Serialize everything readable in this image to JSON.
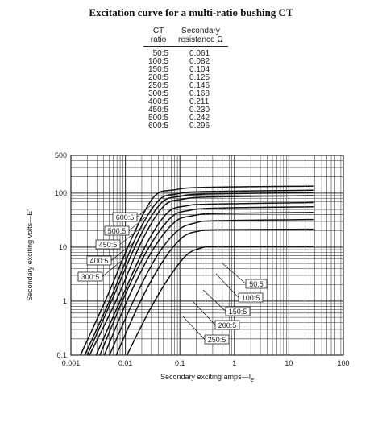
{
  "chart_data": {
    "type": "line",
    "title": "Excitation curve for a multi-ratio bushing CT",
    "xlabel": "Secondary exciting amps—I",
    "xlabel_sub": "e",
    "ylabel": "Secondary exciting volts—E'",
    "xscale": "log",
    "yscale": "log",
    "xlim": [
      0.001,
      100
    ],
    "ylim": [
      0.1,
      500
    ],
    "grid": true,
    "x_ticks": [
      {
        "value": 0.001,
        "label": "0.001"
      },
      {
        "value": 0.01,
        "label": "0.01"
      },
      {
        "value": 0.1,
        "label": "0.1"
      },
      {
        "value": 1,
        "label": "1"
      },
      {
        "value": 10,
        "label": "10"
      },
      {
        "value": 100,
        "label": "100"
      }
    ],
    "y_ticks": [
      {
        "value": 0.1,
        "label": "0.1"
      },
      {
        "value": 1,
        "label": "1"
      },
      {
        "value": 10,
        "label": "10"
      },
      {
        "value": 100,
        "label": "100"
      },
      {
        "value": 500,
        "label": "500"
      }
    ],
    "table": {
      "col1_header": [
        "CT",
        "ratio"
      ],
      "col2_header": [
        "Secondary",
        "resistance Ω"
      ],
      "rows": [
        {
          "ratio": "50:5",
          "resistance": "0.061"
        },
        {
          "ratio": "100:5",
          "resistance": "0.082"
        },
        {
          "ratio": "150:5",
          "resistance": "0.104"
        },
        {
          "ratio": "200:5",
          "resistance": "0.125"
        },
        {
          "ratio": "250:5",
          "resistance": "0.146"
        },
        {
          "ratio": "300:5",
          "resistance": "0.168"
        },
        {
          "ratio": "400:5",
          "resistance": "0.211"
        },
        {
          "ratio": "450:5",
          "resistance": "0.230"
        },
        {
          "ratio": "500:5",
          "resistance": "0.242"
        },
        {
          "ratio": "600:5",
          "resistance": "0.296"
        }
      ]
    },
    "series": [
      {
        "name": "50:5",
        "x": [
          0.0107,
          0.026,
          0.058,
          0.13,
          0.26,
          0.5,
          29
        ],
        "y": [
          0.1,
          0.6,
          2.4,
          7.0,
          9.8,
          10.2,
          10.4
        ]
      },
      {
        "name": "100:5",
        "x": [
          0.0068,
          0.018,
          0.047,
          0.11,
          0.23,
          0.5,
          29
        ],
        "y": [
          0.1,
          0.9,
          5.2,
          15,
          20,
          21,
          21.5
        ]
      },
      {
        "name": "150:5",
        "x": [
          0.0051,
          0.014,
          0.037,
          0.09,
          0.19,
          0.5,
          29
        ],
        "y": [
          0.1,
          1.0,
          6.6,
          20,
          28,
          31,
          32.5
        ]
      },
      {
        "name": "200:5",
        "x": [
          0.0041,
          0.012,
          0.032,
          0.08,
          0.17,
          0.5,
          29
        ],
        "y": [
          0.1,
          1.3,
          9.0,
          29,
          38,
          42,
          44
        ]
      },
      {
        "name": "250:5",
        "x": [
          0.0034,
          0.0105,
          0.028,
          0.07,
          0.15,
          0.5,
          29
        ],
        "y": [
          0.1,
          1.5,
          10.5,
          36,
          48,
          53,
          56
        ]
      },
      {
        "name": "300:5",
        "x": [
          0.0029,
          0.009,
          0.025,
          0.06,
          0.13,
          0.4,
          29
        ],
        "y": [
          0.1,
          1.3,
          12,
          44,
          58,
          63,
          67
        ]
      },
      {
        "name": "400:5",
        "x": [
          0.0022,
          0.007,
          0.02,
          0.05,
          0.11,
          0.4,
          29
        ],
        "y": [
          0.1,
          1.1,
          13,
          57,
          77,
          85,
          90
        ]
      },
      {
        "name": "450:5",
        "x": [
          0.002,
          0.006,
          0.018,
          0.045,
          0.1,
          0.3,
          29
        ],
        "y": [
          0.1,
          1.2,
          15,
          65,
          87,
          96,
          102
        ]
      },
      {
        "name": "500:5",
        "x": [
          0.0018,
          0.0055,
          0.016,
          0.04,
          0.09,
          0.3,
          29
        ],
        "y": [
          0.1,
          1.2,
          16,
          72,
          97,
          107,
          113
        ]
      },
      {
        "name": "600:5",
        "x": [
          0.0015,
          0.0046,
          0.014,
          0.034,
          0.08,
          0.3,
          29
        ],
        "y": [
          0.1,
          1.2,
          17,
          87,
          115,
          128,
          135
        ]
      }
    ],
    "curve_labels": [
      {
        "text": "600:5",
        "series": "600:5"
      },
      {
        "text": "500:5",
        "series": "500:5"
      },
      {
        "text": "450:5",
        "series": "450:5"
      },
      {
        "text": "400:5",
        "series": "400:5"
      },
      {
        "text": "300:5",
        "series": "300:5"
      },
      {
        "text": "50:5",
        "series": "50:5"
      },
      {
        "text": "100:5",
        "series": "100:5"
      },
      {
        "text": "150:5",
        "series": "150:5"
      },
      {
        "text": "200:5",
        "series": "200:5"
      },
      {
        "text": "250:5",
        "series": "250:5"
      }
    ]
  }
}
